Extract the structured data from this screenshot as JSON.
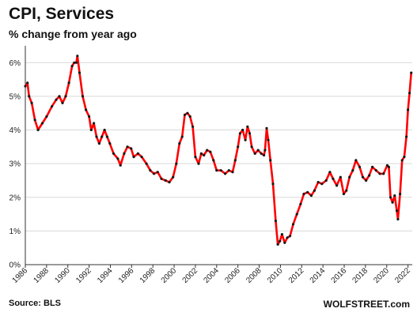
{
  "title": "CPI, Services",
  "subtitle": "% change from year ago",
  "source": "Source: BLS",
  "watermark": "WOLFSTREET.com",
  "colors": {
    "line": "#ff0000",
    "marker": "#1a1a1a",
    "grid": "#d9d9d9",
    "axis": "#333333"
  },
  "chart_data": {
    "type": "line",
    "title": "CPI, Services",
    "subtitle": "% change from year ago",
    "xlabel": "",
    "ylabel": "",
    "xlim": [
      1986,
      2022.4
    ],
    "ylim": [
      0,
      6.5
    ],
    "grid": "horizontal",
    "y_ticks": [
      {
        "value": 0,
        "label": "0%"
      },
      {
        "value": 1,
        "label": "1%"
      },
      {
        "value": 2,
        "label": "2%"
      },
      {
        "value": 3,
        "label": "3%"
      },
      {
        "value": 4,
        "label": "4%"
      },
      {
        "value": 5,
        "label": "5%"
      },
      {
        "value": 6,
        "label": "6%"
      }
    ],
    "x_ticks": [
      {
        "value": 1986,
        "label": "1986"
      },
      {
        "value": 1988,
        "label": "1988"
      },
      {
        "value": 1990,
        "label": "1990"
      },
      {
        "value": 1992,
        "label": "1992"
      },
      {
        "value": 1994,
        "label": "1994"
      },
      {
        "value": 1996,
        "label": "1996"
      },
      {
        "value": 1998,
        "label": "1998"
      },
      {
        "value": 2000,
        "label": "2000"
      },
      {
        "value": 2002,
        "label": "2002"
      },
      {
        "value": 2004,
        "label": "2004"
      },
      {
        "value": 2006,
        "label": "2006"
      },
      {
        "value": 2008,
        "label": "2008"
      },
      {
        "value": 2010,
        "label": "2010"
      },
      {
        "value": 2012,
        "label": "2012"
      },
      {
        "value": 2014,
        "label": "2014"
      },
      {
        "value": 2016,
        "label": "2016"
      },
      {
        "value": 2018,
        "label": "2018"
      },
      {
        "value": 2020,
        "label": "2020"
      },
      {
        "value": 2022,
        "label": "2022"
      }
    ],
    "series": [
      {
        "points": [
          [
            1986.0,
            5.3
          ],
          [
            1986.2,
            5.4
          ],
          [
            1986.35,
            5.0
          ],
          [
            1986.6,
            4.8
          ],
          [
            1986.9,
            4.3
          ],
          [
            1987.2,
            4.0
          ],
          [
            1987.6,
            4.2
          ],
          [
            1988.0,
            4.4
          ],
          [
            1988.5,
            4.7
          ],
          [
            1988.9,
            4.9
          ],
          [
            1989.2,
            5.0
          ],
          [
            1989.5,
            4.8
          ],
          [
            1989.8,
            5.0
          ],
          [
            1990.1,
            5.4
          ],
          [
            1990.4,
            5.9
          ],
          [
            1990.6,
            6.0
          ],
          [
            1990.8,
            6.0
          ],
          [
            1990.9,
            6.2
          ],
          [
            1991.1,
            5.7
          ],
          [
            1991.4,
            5.0
          ],
          [
            1991.7,
            4.6
          ],
          [
            1992.0,
            4.4
          ],
          [
            1992.2,
            4.0
          ],
          [
            1992.45,
            4.2
          ],
          [
            1992.7,
            3.8
          ],
          [
            1992.95,
            3.6
          ],
          [
            1993.2,
            3.8
          ],
          [
            1993.45,
            4.0
          ],
          [
            1993.7,
            3.8
          ],
          [
            1993.95,
            3.6
          ],
          [
            1994.3,
            3.3
          ],
          [
            1994.7,
            3.15
          ],
          [
            1994.95,
            2.95
          ],
          [
            1995.3,
            3.3
          ],
          [
            1995.6,
            3.5
          ],
          [
            1995.95,
            3.45
          ],
          [
            1996.2,
            3.2
          ],
          [
            1996.6,
            3.3
          ],
          [
            1996.95,
            3.2
          ],
          [
            1997.4,
            3.0
          ],
          [
            1997.75,
            2.8
          ],
          [
            1998.1,
            2.7
          ],
          [
            1998.45,
            2.75
          ],
          [
            1998.8,
            2.55
          ],
          [
            1999.2,
            2.5
          ],
          [
            1999.55,
            2.45
          ],
          [
            1999.9,
            2.6
          ],
          [
            2000.2,
            3.0
          ],
          [
            2000.5,
            3.6
          ],
          [
            2000.75,
            3.8
          ],
          [
            2001.0,
            4.45
          ],
          [
            2001.25,
            4.5
          ],
          [
            2001.5,
            4.4
          ],
          [
            2001.75,
            4.1
          ],
          [
            2002.0,
            3.2
          ],
          [
            2002.3,
            3.0
          ],
          [
            2002.55,
            3.3
          ],
          [
            2002.8,
            3.25
          ],
          [
            2003.1,
            3.4
          ],
          [
            2003.4,
            3.35
          ],
          [
            2003.7,
            3.1
          ],
          [
            2004.0,
            2.8
          ],
          [
            2004.4,
            2.8
          ],
          [
            2004.8,
            2.7
          ],
          [
            2005.15,
            2.8
          ],
          [
            2005.5,
            2.75
          ],
          [
            2005.75,
            3.1
          ],
          [
            2006.0,
            3.5
          ],
          [
            2006.2,
            3.9
          ],
          [
            2006.45,
            4.0
          ],
          [
            2006.7,
            3.7
          ],
          [
            2006.9,
            4.1
          ],
          [
            2007.1,
            3.9
          ],
          [
            2007.3,
            3.5
          ],
          [
            2007.6,
            3.3
          ],
          [
            2007.9,
            3.4
          ],
          [
            2008.2,
            3.3
          ],
          [
            2008.45,
            3.25
          ],
          [
            2008.55,
            3.4
          ],
          [
            2008.7,
            4.05
          ],
          [
            2008.85,
            3.7
          ],
          [
            2009.05,
            3.1
          ],
          [
            2009.3,
            2.4
          ],
          [
            2009.55,
            1.3
          ],
          [
            2009.75,
            0.6
          ],
          [
            2009.95,
            0.7
          ],
          [
            2010.15,
            0.9
          ],
          [
            2010.4,
            0.65
          ],
          [
            2010.65,
            0.8
          ],
          [
            2010.9,
            0.85
          ],
          [
            2011.2,
            1.2
          ],
          [
            2011.55,
            1.5
          ],
          [
            2011.9,
            1.8
          ],
          [
            2012.2,
            2.1
          ],
          [
            2012.55,
            2.15
          ],
          [
            2012.9,
            2.05
          ],
          [
            2013.2,
            2.2
          ],
          [
            2013.55,
            2.45
          ],
          [
            2013.9,
            2.4
          ],
          [
            2014.3,
            2.5
          ],
          [
            2014.65,
            2.75
          ],
          [
            2014.95,
            2.55
          ],
          [
            2015.3,
            2.35
          ],
          [
            2015.65,
            2.6
          ],
          [
            2015.95,
            2.1
          ],
          [
            2016.2,
            2.2
          ],
          [
            2016.5,
            2.6
          ],
          [
            2016.8,
            2.8
          ],
          [
            2017.1,
            3.1
          ],
          [
            2017.45,
            2.9
          ],
          [
            2017.75,
            2.6
          ],
          [
            2018.05,
            2.5
          ],
          [
            2018.35,
            2.65
          ],
          [
            2018.65,
            2.9
          ],
          [
            2019.0,
            2.8
          ],
          [
            2019.35,
            2.7
          ],
          [
            2019.7,
            2.7
          ],
          [
            2020.05,
            2.95
          ],
          [
            2020.2,
            2.9
          ],
          [
            2020.35,
            2.0
          ],
          [
            2020.55,
            1.85
          ],
          [
            2020.75,
            2.05
          ],
          [
            2020.95,
            1.6
          ],
          [
            2021.05,
            1.35
          ],
          [
            2021.25,
            2.1
          ],
          [
            2021.45,
            3.1
          ],
          [
            2021.65,
            3.2
          ],
          [
            2021.85,
            3.8
          ],
          [
            2022.0,
            4.6
          ],
          [
            2022.15,
            5.1
          ],
          [
            2022.3,
            5.7
          ]
        ]
      }
    ]
  }
}
